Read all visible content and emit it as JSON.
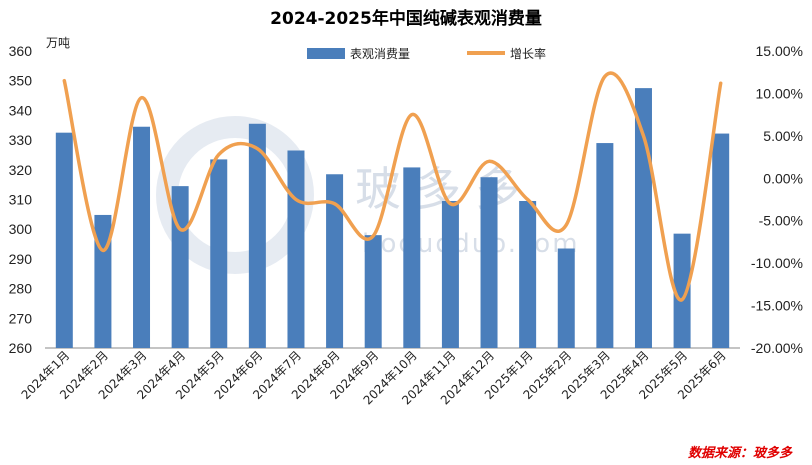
{
  "chart_data": {
    "type": "bar+line",
    "title": "2024-2025年中国纯碱表观消费量",
    "y_left_unit": "万吨",
    "y_left_range": [
      260,
      360
    ],
    "y_left_ticks": [
      "260",
      "270",
      "280",
      "290",
      "300",
      "310",
      "320",
      "330",
      "340",
      "350",
      "360"
    ],
    "y_right_range": [
      -20,
      15
    ],
    "y_right_ticks": [
      "-20.00%",
      "-15.00%",
      "-10.00%",
      "-5.00%",
      "0.00%",
      "5.00%",
      "10.00%",
      "15.00%"
    ],
    "categories": [
      "2024年1月",
      "2024年2月",
      "2024年3月",
      "2024年4月",
      "2024年5月",
      "2024年6月",
      "2024年7月",
      "2024年8月",
      "2024年9月",
      "2024年10月",
      "2024年11月",
      "2024年12月",
      "2025年1月",
      "2025年2月",
      "2025年3月",
      "2025年4月",
      "2025年5月",
      "2025年6月"
    ],
    "series": [
      {
        "name": "表观消费量",
        "kind": "bar",
        "axis": "left",
        "color": "#4a7ebb",
        "values": [
          332.5,
          304.8,
          334.5,
          314.5,
          323.5,
          335.5,
          326.5,
          318.5,
          298.0,
          320.8,
          309.5,
          317.5,
          309.5,
          293.5,
          329.0,
          347.5,
          298.5,
          332.2
        ]
      },
      {
        "name": "增长率",
        "kind": "line",
        "axis": "right",
        "color": "#f0a050",
        "values": [
          11.5,
          -8.5,
          9.5,
          -6.0,
          2.8,
          3.5,
          -2.5,
          -3.0,
          -6.8,
          7.5,
          -3.0,
          2.0,
          -2.5,
          -5.5,
          12.0,
          5.0,
          -14.3,
          11.2
        ]
      }
    ],
    "legend_position": "top-center",
    "source": "数据来源：玻多多",
    "watermark": {
      "text": "玻多多",
      "url": "boduoduo.com"
    }
  }
}
